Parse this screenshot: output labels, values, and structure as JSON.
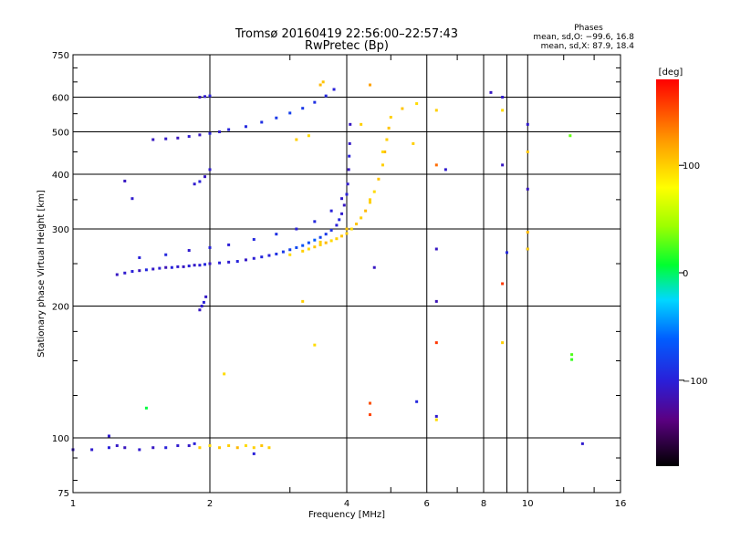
{
  "chart_data": {
    "type": "scatter",
    "title": "Tromsø 20160419 22:56:00–22:57:43",
    "subtitle": "RwPretec (Bp)",
    "xlabel": "Frequency [MHz]",
    "ylabel": "Stationary phase Virtual Height [km]",
    "x_scale": "log",
    "y_scale": "log",
    "xlim": [
      1,
      16
    ],
    "ylim": [
      75,
      750
    ],
    "x_ticks": [
      1,
      2,
      4,
      6,
      8,
      10,
      16
    ],
    "x_tick_labels": [
      "1",
      "2",
      "4",
      "6",
      "8",
      "10",
      "16"
    ],
    "y_ticks": [
      75,
      100,
      200,
      300,
      400,
      500,
      600,
      750
    ],
    "y_tick_labels": [
      "75",
      "100",
      "200",
      "300",
      "400",
      "500",
      "600",
      "750"
    ],
    "grid": true,
    "stats": {
      "heading": "Phases",
      "line_o": "mean, sd,O: −99.6, 16.8",
      "line_x": "mean, sd,X: 87.9, 18.4"
    },
    "colorbar": {
      "label": "[deg]",
      "range": [
        -180,
        180
      ],
      "ticks": [
        100,
        0,
        -100
      ],
      "tick_labels": [
        "100",
        "0",
        "−100"
      ]
    },
    "series": [
      {
        "mode": "O",
        "points": [
          [
            1.25,
            236,
            -110
          ],
          [
            1.3,
            238,
            -105
          ],
          [
            1.35,
            240,
            -100
          ],
          [
            1.4,
            241,
            -112
          ],
          [
            1.45,
            242,
            -95
          ],
          [
            1.5,
            243,
            -108
          ],
          [
            1.55,
            244,
            -102
          ],
          [
            1.6,
            245,
            -115
          ],
          [
            1.65,
            245,
            -98
          ],
          [
            1.7,
            246,
            -105
          ],
          [
            1.75,
            246,
            -110
          ],
          [
            1.8,
            247,
            -100
          ],
          [
            1.85,
            248,
            -108
          ],
          [
            1.9,
            248,
            -102
          ],
          [
            1.95,
            249,
            -95
          ],
          [
            2.0,
            250,
            -110
          ],
          [
            2.1,
            251,
            -100
          ],
          [
            2.2,
            252,
            -105
          ],
          [
            2.3,
            253,
            -98
          ],
          [
            2.4,
            255,
            -108
          ],
          [
            2.5,
            257,
            -102
          ],
          [
            2.6,
            259,
            -95
          ],
          [
            2.7,
            261,
            -100
          ],
          [
            2.8,
            263,
            -90
          ],
          [
            2.9,
            266,
            -85
          ],
          [
            3.0,
            269,
            -80
          ],
          [
            3.1,
            272,
            -75
          ],
          [
            3.2,
            275,
            -70
          ],
          [
            3.3,
            279,
            -72
          ],
          [
            3.4,
            283,
            -65
          ],
          [
            3.5,
            287,
            -78
          ],
          [
            3.6,
            292,
            -85
          ],
          [
            3.7,
            298,
            -90
          ],
          [
            3.8,
            306,
            -100
          ],
          [
            3.85,
            315,
            -95
          ],
          [
            3.9,
            325,
            -105
          ],
          [
            3.95,
            340,
            -110
          ],
          [
            4.0,
            360,
            -100
          ],
          [
            4.02,
            380,
            -105
          ],
          [
            4.04,
            410,
            -110
          ],
          [
            4.05,
            440,
            -100
          ],
          [
            4.06,
            470,
            -108
          ],
          [
            4.07,
            520,
            -110
          ],
          [
            1.4,
            258,
            -100
          ],
          [
            1.6,
            262,
            -95
          ],
          [
            1.8,
            268,
            -105
          ],
          [
            2.0,
            272,
            -98
          ],
          [
            2.2,
            276,
            -102
          ],
          [
            2.5,
            284,
            -95
          ],
          [
            2.8,
            292,
            -90
          ],
          [
            3.1,
            300,
            -100
          ],
          [
            3.4,
            312,
            -95
          ],
          [
            3.7,
            330,
            -100
          ],
          [
            3.9,
            352,
            -105
          ],
          [
            1.5,
            480,
            -110
          ],
          [
            1.6,
            482,
            -108
          ],
          [
            1.7,
            484,
            -112
          ],
          [
            1.8,
            488,
            -105
          ],
          [
            1.9,
            492,
            -110
          ],
          [
            2.0,
            496,
            -100
          ],
          [
            2.1,
            500,
            -105
          ],
          [
            2.2,
            506,
            -98
          ],
          [
            2.4,
            514,
            -95
          ],
          [
            2.6,
            526,
            -90
          ],
          [
            2.8,
            538,
            -85
          ],
          [
            3.0,
            552,
            -80
          ],
          [
            3.2,
            566,
            -85
          ],
          [
            3.4,
            584,
            -90
          ],
          [
            3.6,
            604,
            -95
          ],
          [
            3.75,
            625,
            -100
          ],
          [
            1.9,
            600,
            -110
          ],
          [
            1.95,
            602,
            -105
          ],
          [
            2.0,
            604,
            -100
          ],
          [
            1.9,
            196,
            -110
          ],
          [
            1.92,
            200,
            -105
          ],
          [
            1.94,
            204,
            -100
          ],
          [
            1.96,
            210,
            -108
          ],
          [
            1.85,
            380,
            -105
          ],
          [
            1.9,
            385,
            -100
          ],
          [
            1.95,
            395,
            -110
          ],
          [
            2.0,
            410,
            -105
          ],
          [
            1.3,
            386,
            -110
          ],
          [
            1.35,
            352,
            -105
          ],
          [
            1.0,
            94,
            -110
          ],
          [
            1.1,
            94,
            -105
          ],
          [
            1.2,
            95,
            -100
          ],
          [
            1.25,
            96,
            -108
          ],
          [
            1.3,
            95,
            -112
          ],
          [
            1.4,
            94,
            -105
          ],
          [
            1.5,
            95,
            -110
          ],
          [
            1.6,
            95,
            -100
          ],
          [
            1.7,
            96,
            -105
          ],
          [
            1.8,
            96,
            -108
          ],
          [
            1.85,
            97,
            -100
          ],
          [
            1.2,
            101,
            -105
          ],
          [
            1.45,
            117,
            5
          ],
          [
            2.5,
            92,
            -100
          ],
          [
            4.5,
            120,
            -100
          ],
          [
            5.7,
            121,
            -95
          ],
          [
            6.3,
            112,
            -105
          ],
          [
            6.3,
            270,
            -110
          ],
          [
            6.3,
            205,
            -115
          ],
          [
            6.6,
            410,
            -105
          ],
          [
            8.3,
            615,
            -110
          ],
          [
            8.8,
            600,
            -105
          ],
          [
            8.8,
            420,
            -110
          ],
          [
            9.0,
            265,
            -95
          ],
          [
            10.0,
            520,
            -105
          ],
          [
            10.0,
            370,
            -110
          ],
          [
            10.0,
            270,
            -100
          ],
          [
            13.2,
            97,
            -105
          ],
          [
            4.6,
            245,
            -110
          ]
        ]
      },
      {
        "mode": "X",
        "points": [
          [
            3.2,
            267,
            100
          ],
          [
            3.3,
            270,
            95
          ],
          [
            3.4,
            273,
            105
          ],
          [
            3.5,
            276,
            100
          ],
          [
            3.6,
            279,
            110
          ],
          [
            3.7,
            282,
            95
          ],
          [
            3.8,
            285,
            100
          ],
          [
            3.9,
            289,
            105
          ],
          [
            4.0,
            293,
            100
          ],
          [
            4.1,
            300,
            95
          ],
          [
            4.2,
            308,
            105
          ],
          [
            4.3,
            318,
            100
          ],
          [
            4.4,
            330,
            110
          ],
          [
            4.5,
            345,
            100
          ],
          [
            4.6,
            365,
            95
          ],
          [
            4.7,
            390,
            105
          ],
          [
            4.8,
            420,
            100
          ],
          [
            4.85,
            450,
            110
          ],
          [
            4.9,
            480,
            100
          ],
          [
            4.95,
            510,
            105
          ],
          [
            5.0,
            540,
            100
          ],
          [
            3.0,
            262,
            95
          ],
          [
            3.5,
            280,
            100
          ],
          [
            4.0,
            300,
            105
          ],
          [
            4.5,
            350,
            100
          ],
          [
            4.8,
            450,
            95
          ],
          [
            1.9,
            95,
            100
          ],
          [
            2.0,
            96,
            95
          ],
          [
            2.1,
            95,
            105
          ],
          [
            2.2,
            96,
            100
          ],
          [
            2.3,
            95,
            110
          ],
          [
            2.4,
            96,
            95
          ],
          [
            2.5,
            95,
            100
          ],
          [
            2.6,
            96,
            105
          ],
          [
            2.7,
            95,
            100
          ],
          [
            3.1,
            480,
            100
          ],
          [
            3.3,
            490,
            95
          ],
          [
            4.3,
            520,
            100
          ],
          [
            5.3,
            565,
            105
          ],
          [
            5.6,
            470,
            100
          ],
          [
            5.7,
            580,
            95
          ],
          [
            3.5,
            640,
            110
          ],
          [
            3.55,
            650,
            105
          ],
          [
            4.5,
            640,
            120
          ],
          [
            2.15,
            140,
            95
          ],
          [
            3.2,
            205,
            100
          ],
          [
            3.4,
            163,
            95
          ],
          [
            4.5,
            120,
            150
          ],
          [
            4.5,
            113,
            155
          ],
          [
            6.3,
            110,
            95
          ],
          [
            6.3,
            560,
            100
          ],
          [
            6.3,
            420,
            140
          ],
          [
            6.3,
            165,
            160
          ],
          [
            8.8,
            165,
            100
          ],
          [
            8.8,
            560,
            95
          ],
          [
            8.8,
            225,
            160
          ],
          [
            10.0,
            450,
            105
          ],
          [
            10.0,
            295,
            110
          ],
          [
            10.0,
            270,
            100
          ],
          [
            12.4,
            490,
            30
          ],
          [
            12.5,
            155,
            25
          ],
          [
            12.5,
            151,
            20
          ]
        ]
      }
    ]
  }
}
